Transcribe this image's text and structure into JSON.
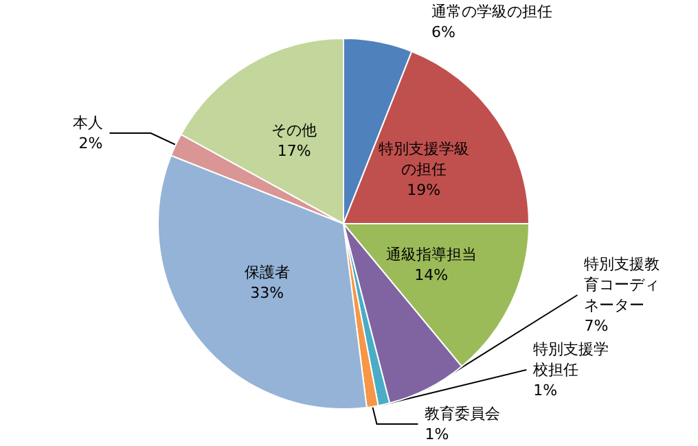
{
  "chart_data": {
    "type": "pie",
    "categories": [
      "通常の学級の担任",
      "特別支援学級の担任",
      "通級指導担当",
      "特別支援教育コーディネーター",
      "特別支援学校担任",
      "教育委員会",
      "保護者",
      "本人",
      "その他"
    ],
    "values": [
      6,
      19,
      14,
      7,
      1,
      1,
      33,
      2,
      17
    ],
    "value_labels": [
      "6%",
      "19%",
      "14%",
      "7%",
      "1%",
      "1%",
      "33%",
      "2%",
      "17%"
    ],
    "colors": [
      "#4f81bd",
      "#c0504d",
      "#9bbb59",
      "#8064a2",
      "#4bacc6",
      "#f79646",
      "#95b3d7",
      "#d99694",
      "#c3d69b"
    ],
    "legend": false
  }
}
